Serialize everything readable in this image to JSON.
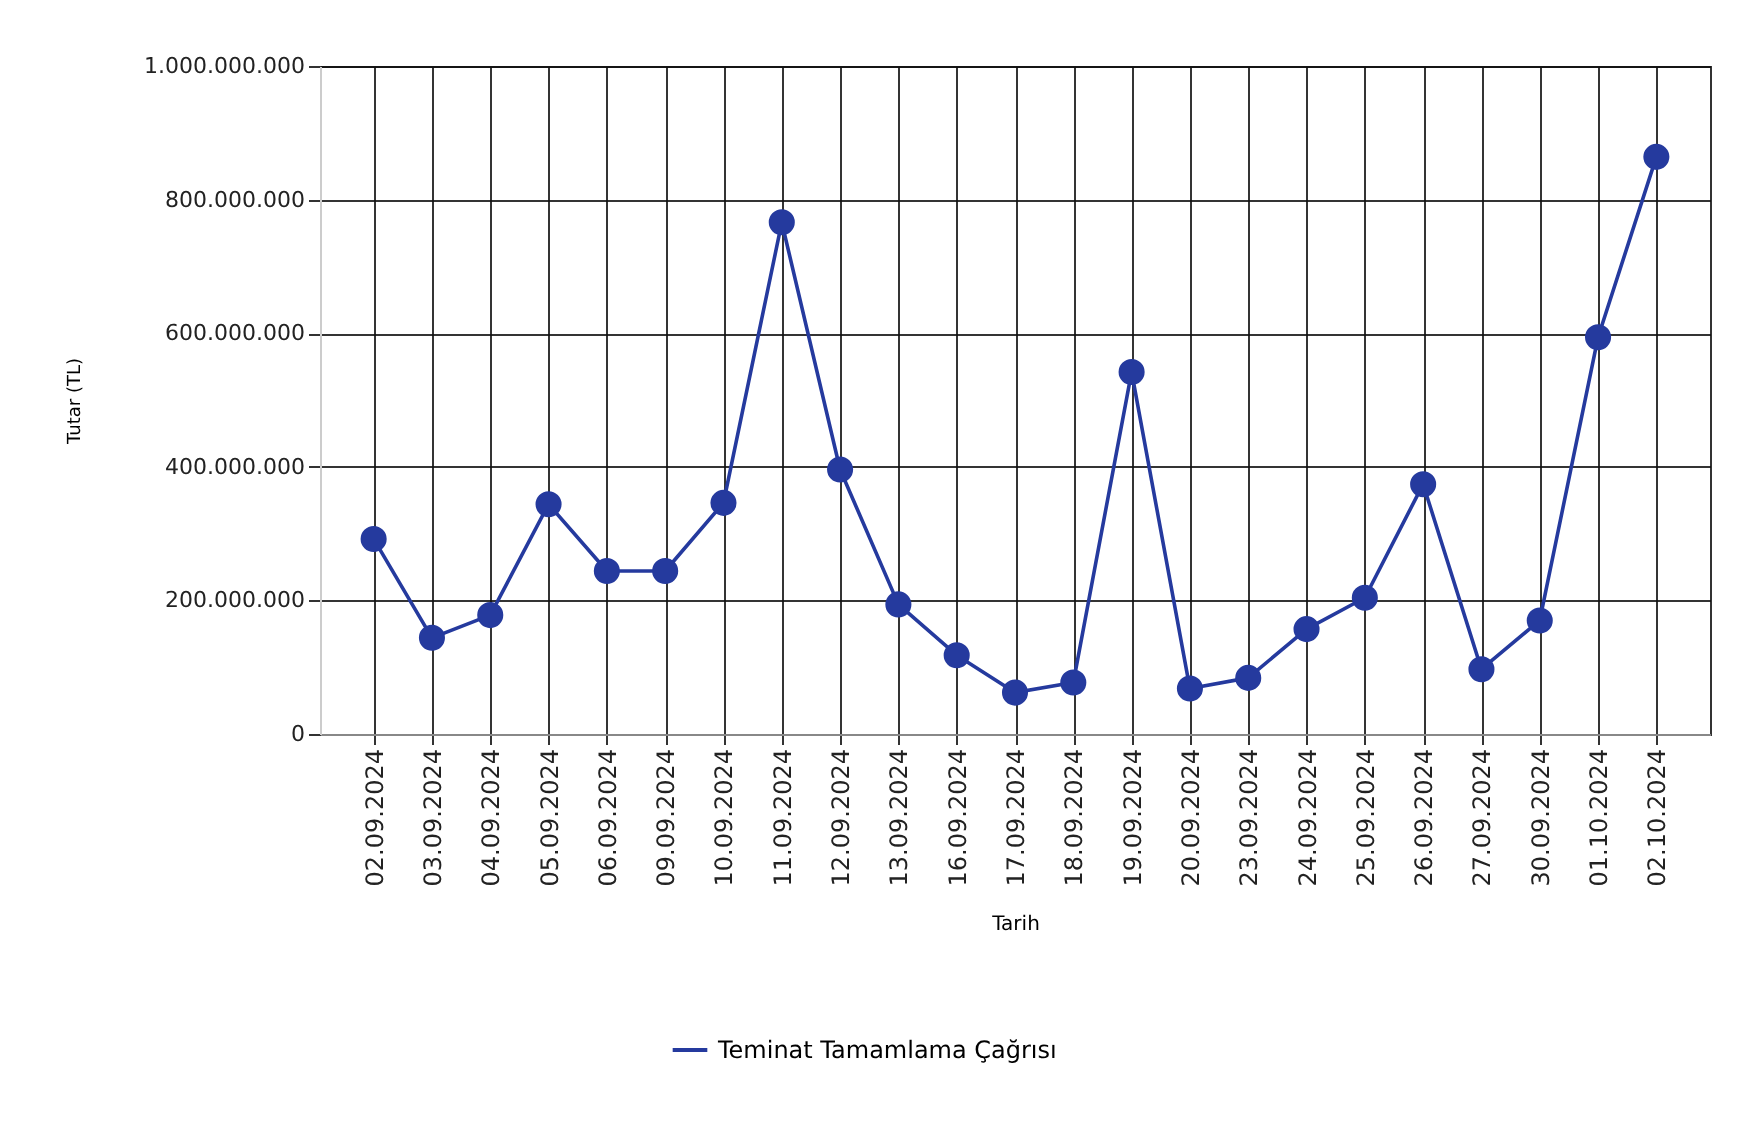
{
  "chart_data": {
    "type": "line",
    "xlabel": "Tarih",
    "ylabel": "Tutar (TL)",
    "categories": [
      "02.09.2024",
      "03.09.2024",
      "04.09.2024",
      "05.09.2024",
      "06.09.2024",
      "09.09.2024",
      "10.09.2024",
      "11.09.2024",
      "12.09.2024",
      "13.09.2024",
      "16.09.2024",
      "17.09.2024",
      "18.09.2024",
      "19.09.2024",
      "20.09.2024",
      "23.09.2024",
      "24.09.2024",
      "25.09.2024",
      "26.09.2024",
      "27.09.2024",
      "30.09.2024",
      "01.10.2024",
      "02.10.2024"
    ],
    "series": [
      {
        "name": "Teminat Tamamlama Çağrısı",
        "color": "#253a9e",
        "values": [
          292000000,
          144000000,
          178000000,
          344000000,
          244000000,
          244000000,
          346000000,
          766000000,
          396000000,
          194000000,
          118000000,
          62000000,
          77000000,
          542000000,
          68000000,
          84000000,
          157000000,
          204000000,
          374000000,
          97000000,
          170000000,
          594000000,
          864000000
        ]
      }
    ],
    "ylim": [
      0,
      1000000000
    ],
    "yticks": [
      {
        "value": 0,
        "label": "0"
      },
      {
        "value": 200000000,
        "label": "200.000.000"
      },
      {
        "value": 400000000,
        "label": "400.000.000"
      },
      {
        "value": 600000000,
        "label": "600.000.000"
      },
      {
        "value": 800000000,
        "label": "800.000.000"
      },
      {
        "value": 1000000000,
        "label": "1.000.000.000"
      }
    ],
    "grid": true,
    "legend": "bottom",
    "marker": "circle",
    "line_style": "solid"
  }
}
